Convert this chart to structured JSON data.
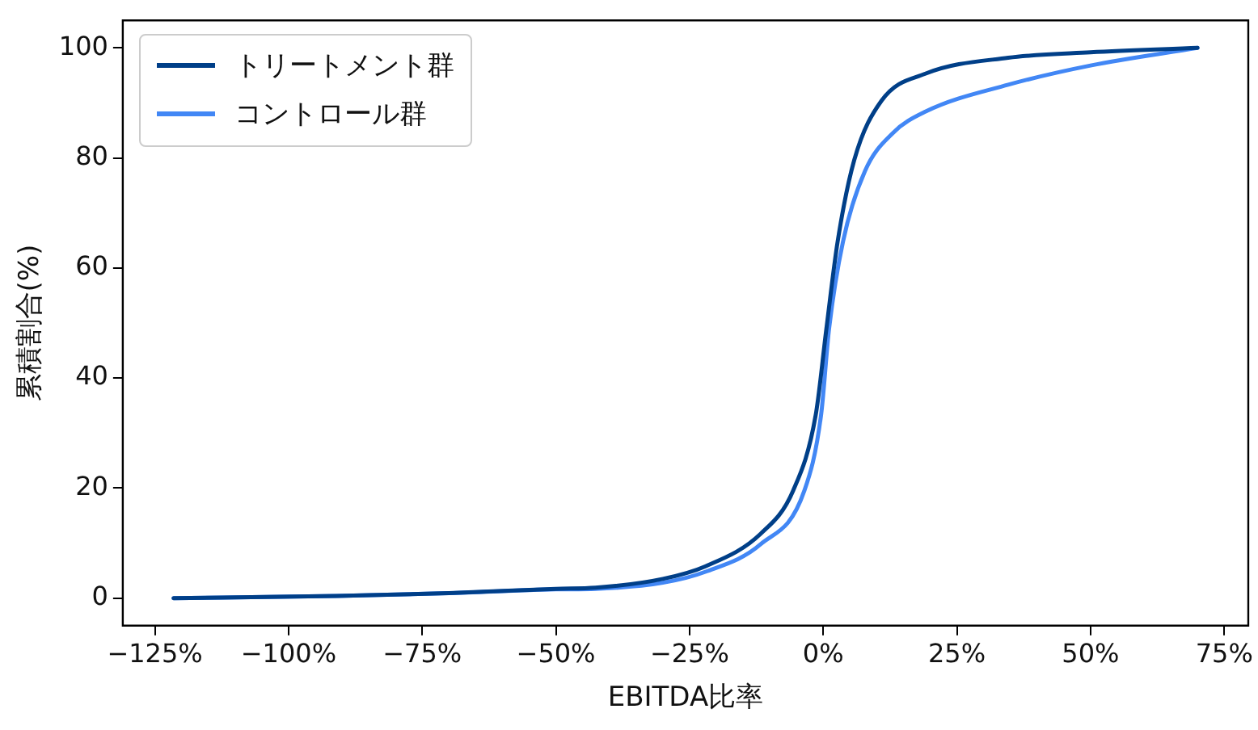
{
  "chart_data": {
    "type": "line",
    "xlabel": "EBITDA比率",
    "ylabel": "累積割合(%)",
    "xlim": [
      -131,
      79.5
    ],
    "ylim": [
      -5,
      105
    ],
    "xticks": [
      {
        "value": -125,
        "label": "−125%"
      },
      {
        "value": -100,
        "label": "−100%"
      },
      {
        "value": -75,
        "label": "−75%"
      },
      {
        "value": -50,
        "label": "−50%"
      },
      {
        "value": -25,
        "label": "−25%"
      },
      {
        "value": 0,
        "label": "0%"
      },
      {
        "value": 25,
        "label": "25%"
      },
      {
        "value": 50,
        "label": "50%"
      },
      {
        "value": 75,
        "label": "75%"
      }
    ],
    "yticks": [
      0,
      20,
      40,
      60,
      80,
      100
    ],
    "grid": false,
    "legend": "top left",
    "marker": "none",
    "line_style": "solid",
    "series": [
      {
        "name": "トリートメント群",
        "color": "#003f88",
        "x": [
          -121.5,
          -91,
          -70,
          -50,
          -42.6,
          -30,
          -22,
          -11.7,
          -5.6,
          -1.4,
          0.6,
          2.7,
          5.8,
          10.9,
          19.1,
          34.6,
          50,
          70
        ],
        "values": [
          0,
          0.4,
          0.9,
          1.7,
          1.9,
          3.5,
          5.8,
          11.7,
          19.6,
          33.3,
          49,
          64.8,
          79.6,
          90.4,
          95.3,
          98.2,
          99.2,
          100
        ]
      },
      {
        "name": "コントロール群",
        "color": "#4287f5",
        "x": [
          -121.5,
          -91,
          -70,
          -50,
          -42.6,
          -30,
          -22,
          -11.7,
          -3.5,
          -0.4,
          1.1,
          3.7,
          7.8,
          13,
          19.1,
          34.6,
          50,
          70
        ],
        "values": [
          0,
          0.4,
          0.9,
          1.6,
          1.7,
          2.8,
          4.8,
          9.8,
          19.6,
          33.3,
          49,
          64.8,
          77.6,
          84.5,
          88.4,
          93.3,
          96.8,
          100
        ]
      }
    ]
  }
}
